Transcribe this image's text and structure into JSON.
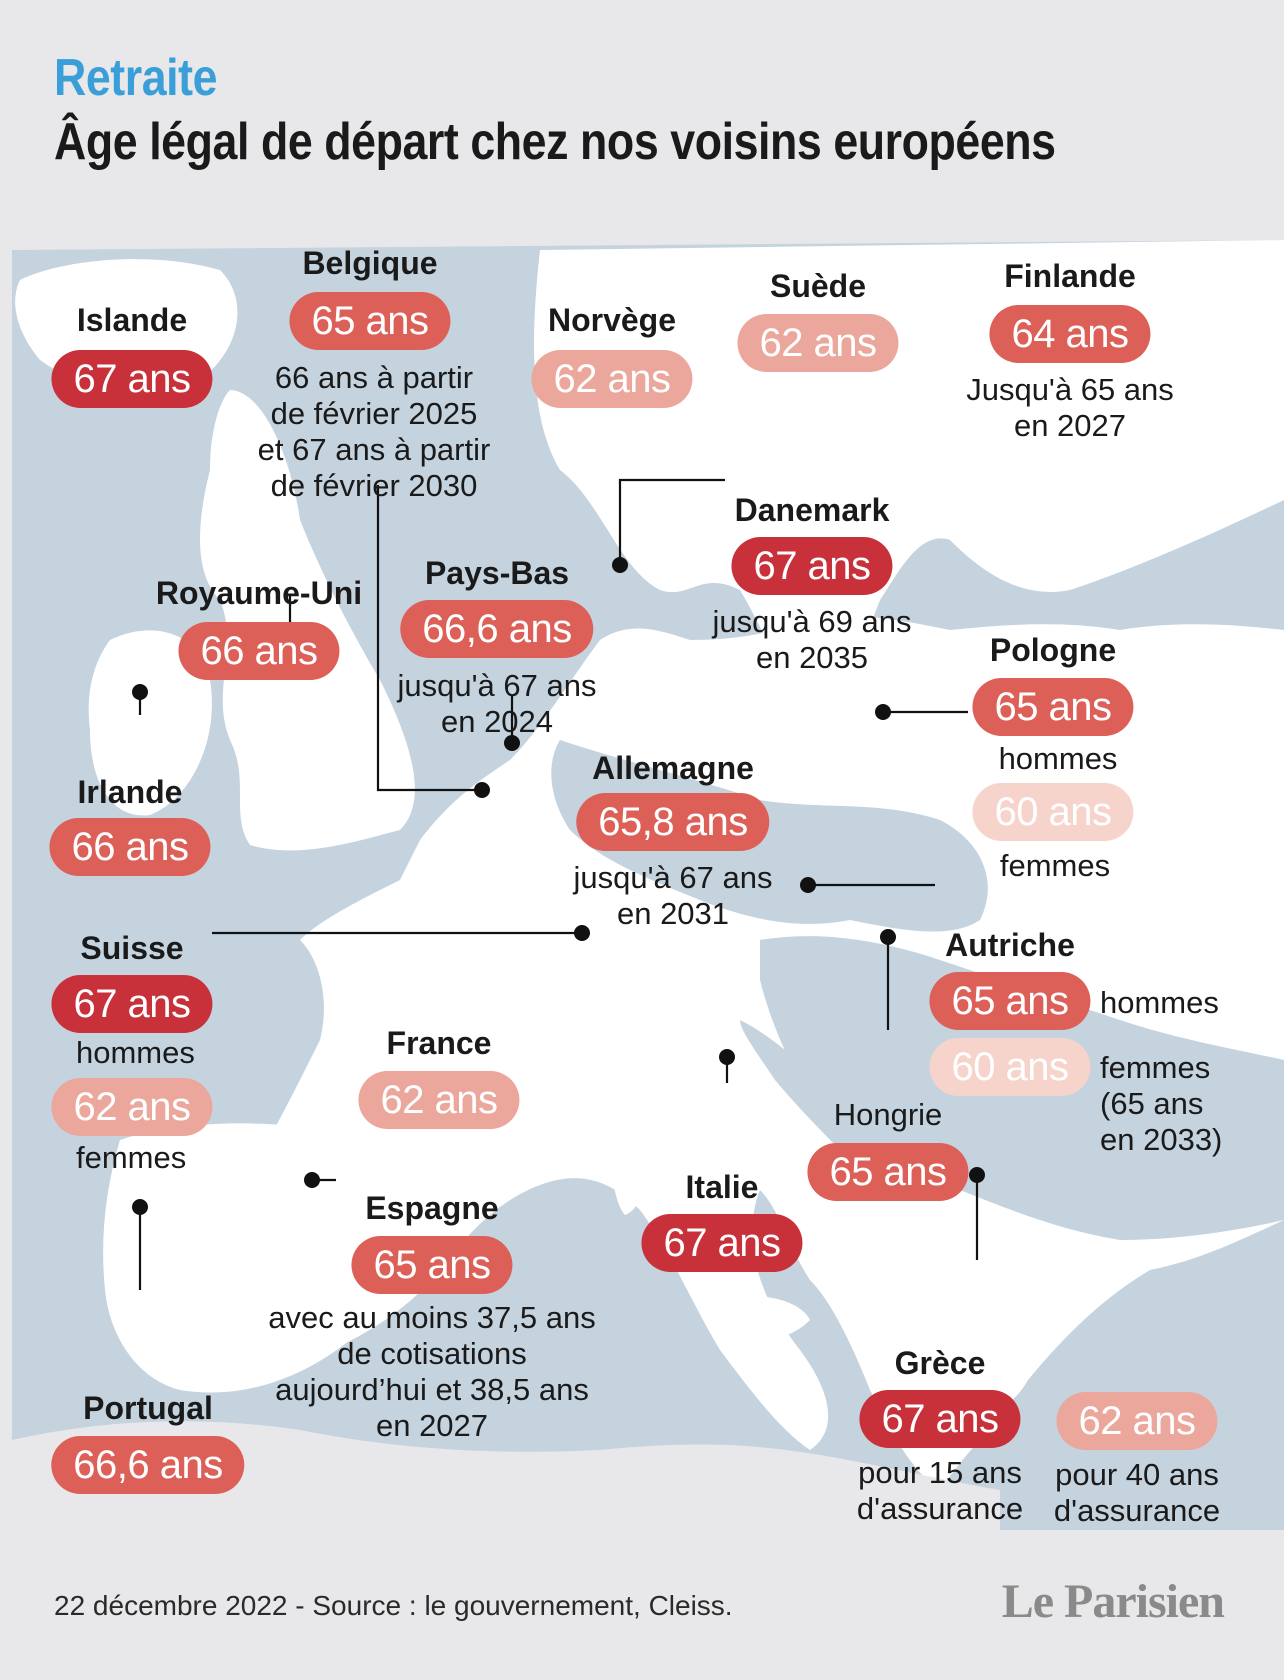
{
  "header": {
    "kicker": "Retraite",
    "title": "Âge légal de départ chez nos voisins européens"
  },
  "colors": {
    "accent": "#3a9fd8",
    "age_67_and_up": "#c8303a",
    "age_65_66": "#dd6058",
    "age_62_64": "#eba79c",
    "age_60": "#f6d4cc",
    "sea": "#c5d3df",
    "land": "#ffffff",
    "outside_land": "#e8e8ea"
  },
  "countries": {
    "islande": {
      "name": "Islande",
      "age": "67 ans"
    },
    "belgique": {
      "name": "Belgique",
      "age": "65 ans",
      "note": "66 ans à partir\nde février 2025\net 67 ans à partir\nde février 2030"
    },
    "norvege": {
      "name": "Norvège",
      "age": "62 ans"
    },
    "suede": {
      "name": "Suède",
      "age": "62 ans"
    },
    "finlande": {
      "name": "Finlande",
      "age": "64 ans",
      "note": "Jusqu'à 65 ans\nen 2027"
    },
    "danemark": {
      "name": "Danemark",
      "age": "67 ans",
      "note": "jusqu'à 69 ans\nen 2035"
    },
    "pays_bas": {
      "name": "Pays-Bas",
      "age": "66,6 ans",
      "note": "jusqu'à 67 ans\nen 2024"
    },
    "royaume_uni": {
      "name": "Royaume-Uni",
      "age": "66 ans"
    },
    "pologne": {
      "name": "Pologne",
      "age_men": "65 ans",
      "label_men": "hommes",
      "age_women": "60 ans",
      "label_women": "femmes"
    },
    "irlande": {
      "name": "Irlande",
      "age": "66 ans"
    },
    "allemagne": {
      "name": "Allemagne",
      "age": "65,8 ans",
      "note": "jusqu'à 67 ans\nen 2031"
    },
    "suisse": {
      "name": "Suisse",
      "age_men": "67 ans",
      "label_men": "hommes",
      "age_women": "62 ans",
      "label_women": "femmes"
    },
    "autriche": {
      "name": "Autriche",
      "age_men": "65 ans",
      "label_men": "hommes",
      "age_women": "60 ans",
      "label_women": "femmes\n(65 ans\nen 2033)"
    },
    "france": {
      "name": "France",
      "age": "62 ans"
    },
    "hongrie": {
      "name": "Hongrie",
      "age": "65 ans"
    },
    "italie": {
      "name": "Italie",
      "age": "67 ans"
    },
    "espagne": {
      "name": "Espagne",
      "age": "65 ans",
      "note": "avec au moins 37,5 ans\nde cotisations\naujourd’hui et 38,5 ans\nen 2027"
    },
    "grece": {
      "name": "Grèce",
      "age_1": "67 ans",
      "label_1": "pour 15 ans\nd'assurance",
      "age_2": "62 ans",
      "label_2": "pour 40 ans\nd'assurance"
    },
    "portugal": {
      "name": "Portugal",
      "age": "66,6 ans"
    }
  },
  "footer": {
    "source": "22 décembre 2022 - Source : le gouvernement, Cleiss.",
    "logo": "Le Parisien"
  }
}
